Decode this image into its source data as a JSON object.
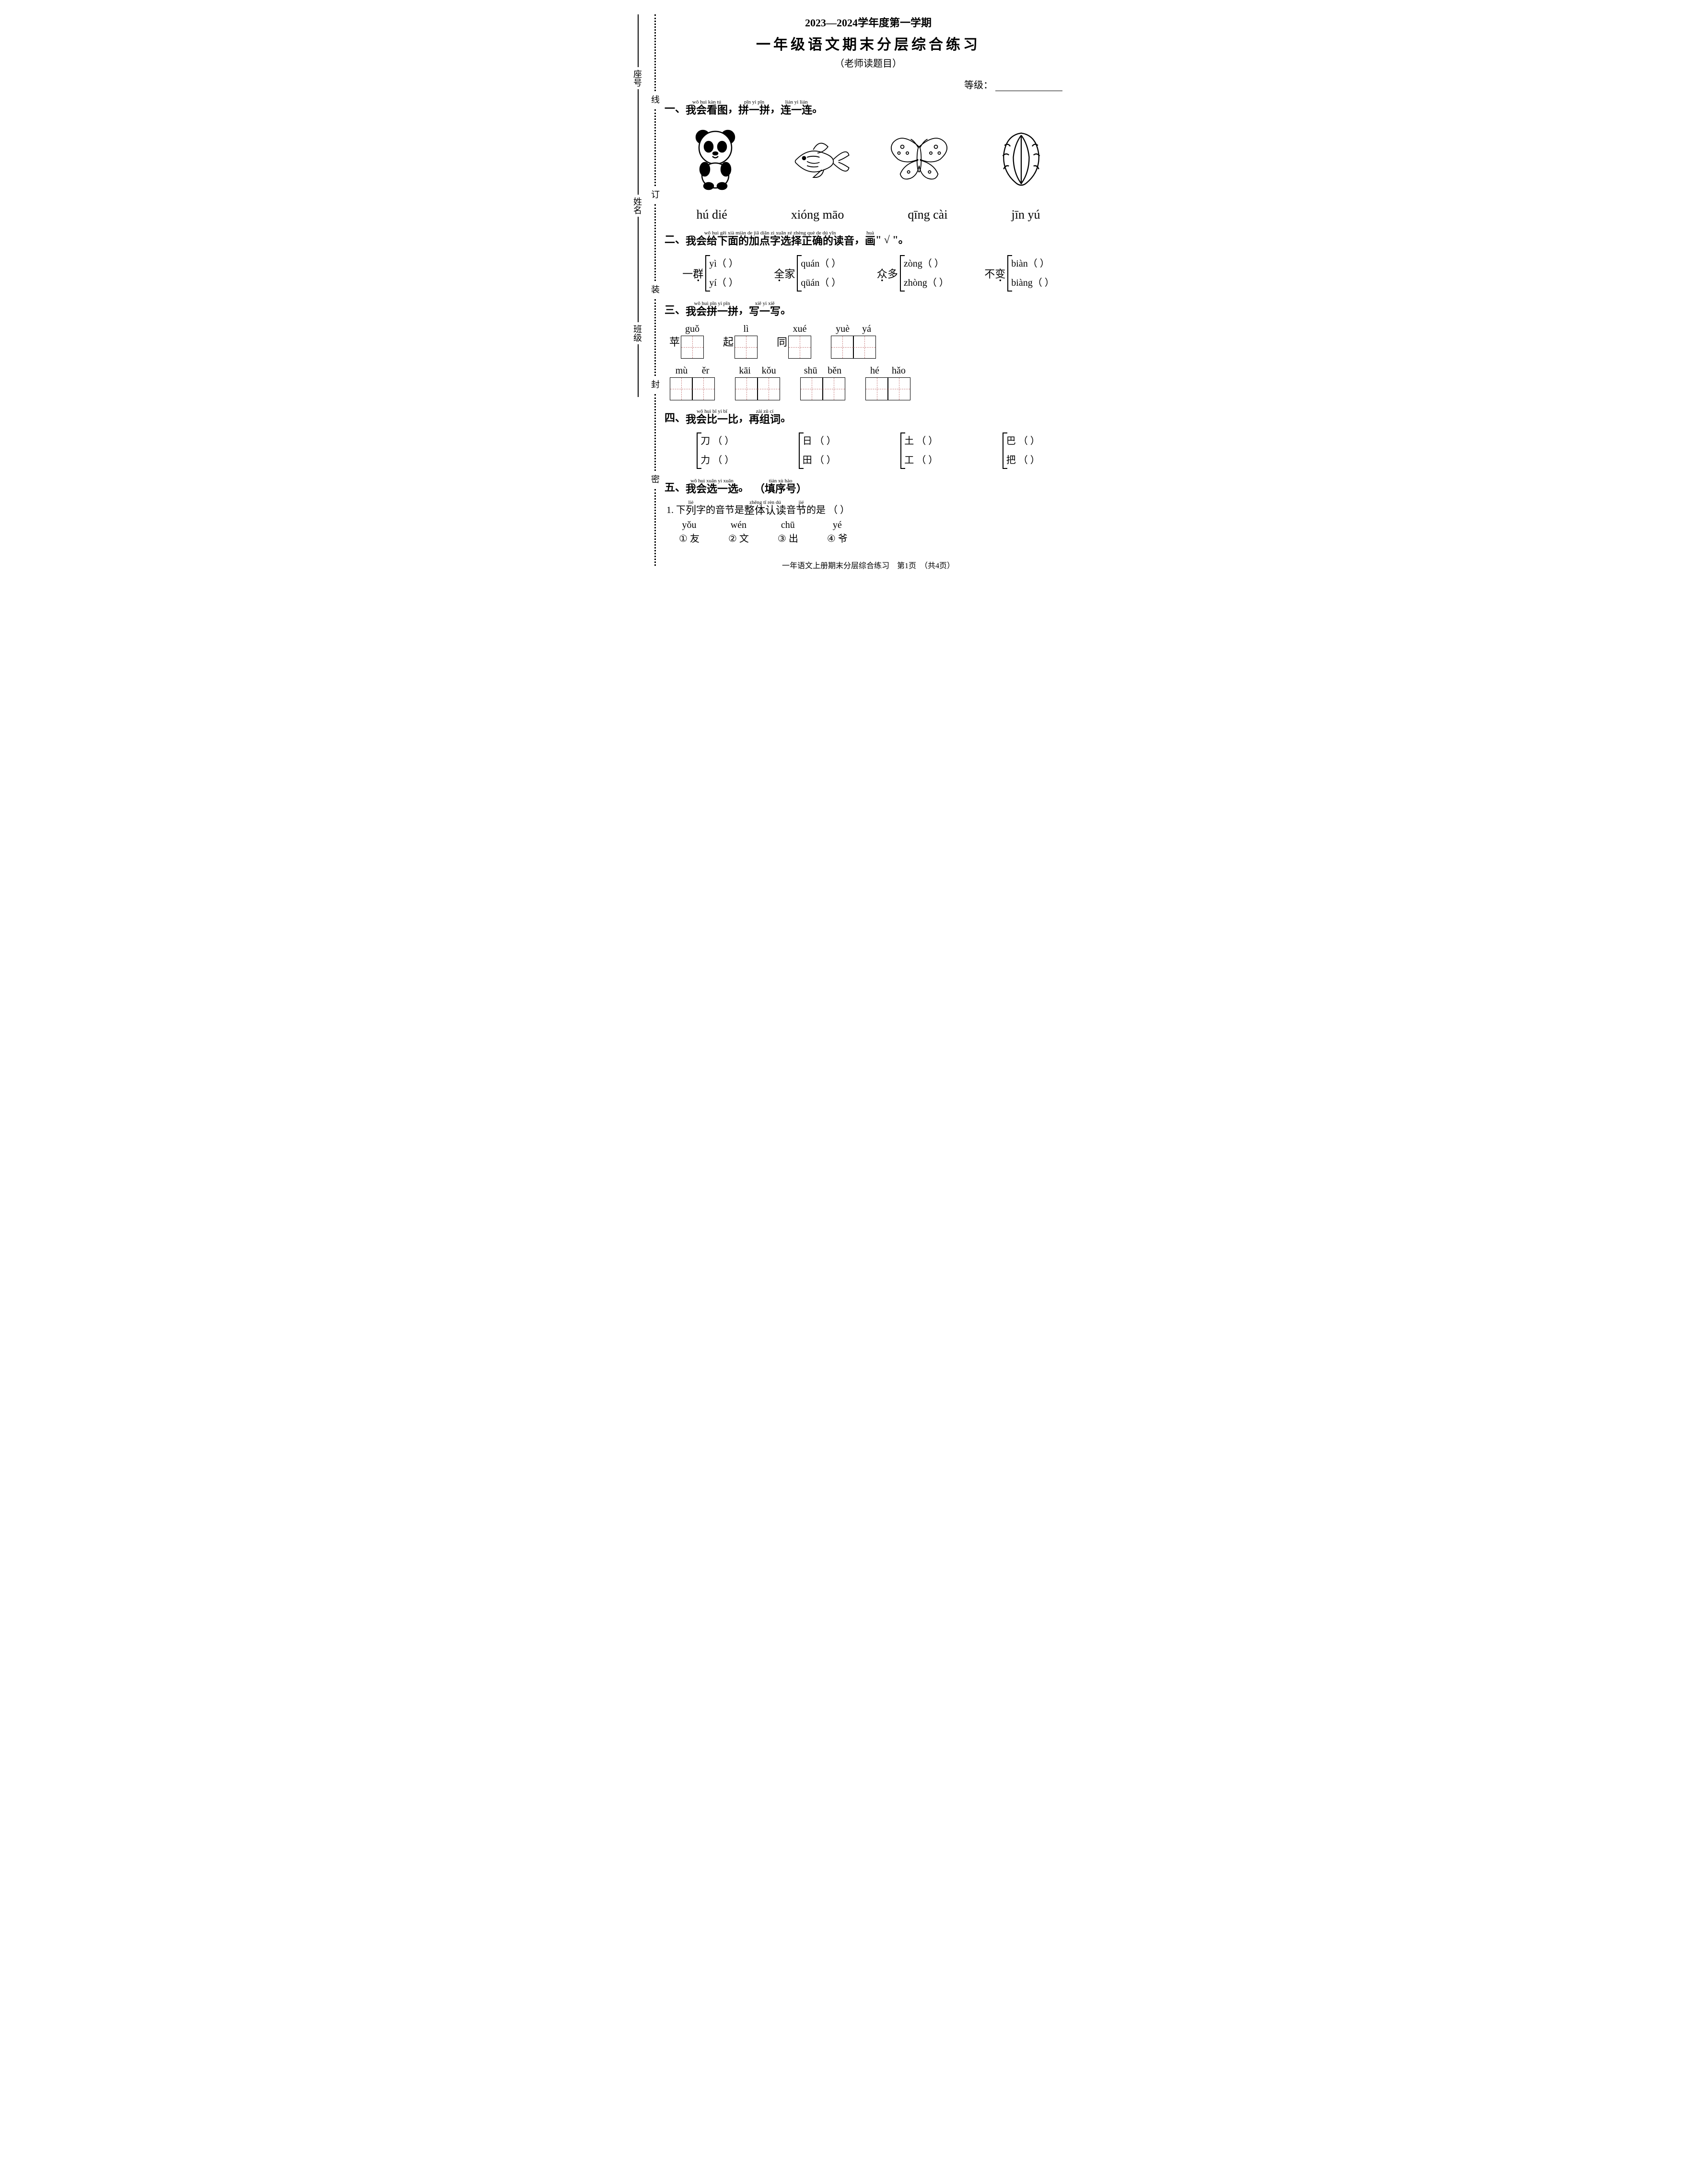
{
  "header": {
    "year_line": "2023—2024学年度第一学期",
    "title": "一年级语文期末分层综合练习",
    "subtitle": "（老师读题目）",
    "grade_label": "等级："
  },
  "binding": {
    "fields": [
      "座号",
      "姓名",
      "班级"
    ],
    "markers": [
      "线",
      "订",
      "装",
      "封",
      "密"
    ]
  },
  "q1": {
    "number": "一、",
    "title_segments": [
      {
        "pinyin": "wǒ huì kàn tú",
        "hanzi": "我会看图"
      },
      {
        "plain": "，"
      },
      {
        "pinyin": "pīn yi pīn",
        "hanzi": "拼一拼"
      },
      {
        "plain": "，"
      },
      {
        "pinyin": "lián yi lián",
        "hanzi": "连一连"
      },
      {
        "plain": "。"
      }
    ],
    "images": [
      "panda",
      "goldfish",
      "butterfly",
      "cabbage"
    ],
    "words": [
      "hú  dié",
      "xióng  māo",
      "qīng  cài",
      "jīn  yú"
    ]
  },
  "q2": {
    "number": "二、",
    "title_segments": [
      {
        "pinyin": "wǒ huì gěi xià miàn de jiā diǎn zì xuǎn zé zhèng què de dú yīn",
        "hanzi": "我会给下面的加点字选择正确的读音"
      },
      {
        "plain": "，"
      },
      {
        "pinyin": "huà",
        "hanzi": "画"
      },
      {
        "plain": "\" √ \"。"
      }
    ],
    "items": [
      {
        "prefix": "一",
        "dotted": "群",
        "opts": [
          "yì（   ）",
          "yí（   ）"
        ]
      },
      {
        "prefix": "",
        "dotted": "全",
        "suffix": "家",
        "opts": [
          "quán（   ）",
          "qüán（   ）"
        ]
      },
      {
        "prefix": "",
        "dotted": "众",
        "suffix": "多",
        "opts": [
          "zòng（   ）",
          "zhòng（   ）"
        ]
      },
      {
        "prefix": "不",
        "dotted": "变",
        "opts": [
          "biàn（   ）",
          "biàng（   ）"
        ]
      }
    ]
  },
  "q3": {
    "number": "三、",
    "title_segments": [
      {
        "pinyin": "wǒ huì pīn yi pīn",
        "hanzi": "我会拼一拼"
      },
      {
        "plain": "，"
      },
      {
        "pinyin": "xiě yi xiě",
        "hanzi": "写一写"
      },
      {
        "plain": "。"
      }
    ],
    "row1": [
      {
        "prefix": "苹",
        "pinyin": [
          "guǒ"
        ],
        "boxes": 1
      },
      {
        "prefix": "起",
        "pinyin": [
          "lì"
        ],
        "boxes": 1
      },
      {
        "prefix": "同",
        "pinyin": [
          "xué"
        ],
        "boxes": 1
      },
      {
        "prefix": "",
        "pinyin": [
          "yuè",
          "yá"
        ],
        "boxes": 2
      }
    ],
    "row2": [
      {
        "prefix": "",
        "pinyin": [
          "mù",
          "ěr"
        ],
        "boxes": 2
      },
      {
        "prefix": "",
        "pinyin": [
          "kāi",
          "kǒu"
        ],
        "boxes": 2
      },
      {
        "prefix": "",
        "pinyin": [
          "shū",
          "běn"
        ],
        "boxes": 2
      },
      {
        "prefix": "",
        "pinyin": [
          "hé",
          "hǎo"
        ],
        "boxes": 2
      }
    ]
  },
  "q4": {
    "number": "四、",
    "title_segments": [
      {
        "pinyin": "wǒ huì bǐ yi bǐ",
        "hanzi": "我会比一比"
      },
      {
        "plain": "，"
      },
      {
        "pinyin": "zài zǔ cí",
        "hanzi": "再组词"
      },
      {
        "plain": "。"
      }
    ],
    "pairs": [
      {
        "a": "刀 （          ）",
        "b": "力 （          ）"
      },
      {
        "a": "日 （          ）",
        "b": "田 （          ）"
      },
      {
        "a": "土 （          ）",
        "b": "工 （          ）"
      },
      {
        "a": "巴 （          ）",
        "b": "把 （          ）"
      }
    ]
  },
  "q5": {
    "number": "五、",
    "title_segments": [
      {
        "pinyin": "wǒ huì xuǎn yi xuǎn",
        "hanzi": "我会选一选"
      },
      {
        "plain": "。　"
      },
      {
        "pinyin": "tián xù hào",
        "hanzi": "（填序号）"
      }
    ],
    "question": {
      "num": "1. ",
      "parts": [
        {
          "plain": "下"
        },
        {
          "pinyin": "liè",
          "hanzi": "列"
        },
        {
          "plain": "字的音节是"
        },
        {
          "pinyin": "zhěng tǐ rèn dú",
          "hanzi": "整体认读"
        },
        {
          "plain": "音"
        },
        {
          "pinyin": "jié",
          "hanzi": "节"
        },
        {
          "plain": "的是 （     ）"
        }
      ]
    },
    "options": [
      {
        "num": "①",
        "pinyin": "yǒu",
        "hanzi": "友"
      },
      {
        "num": "②",
        "pinyin": "wén",
        "hanzi": "文"
      },
      {
        "num": "③",
        "pinyin": "chū",
        "hanzi": "出"
      },
      {
        "num": "④",
        "pinyin": "yé",
        "hanzi": "爷"
      }
    ]
  },
  "footer": "一年语文上册期末分层综合练习　第1页　（共4页）"
}
